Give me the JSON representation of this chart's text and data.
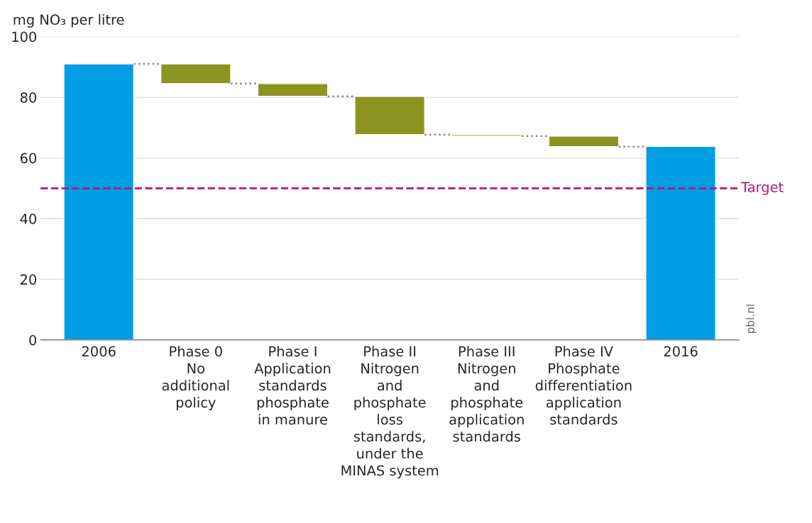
{
  "chart_data": {
    "type": "bar",
    "ylabel": "mg NO₃ per litre",
    "categories": [
      "2006",
      "Phase 0\nNo\nadditional\npolicy",
      "Phase I\nApplication\nstandards\nphosphate\nin manure",
      "Phase II\nNitrogen\nand\nphosphate\nloss\nstandards,\nunder the\nMINAS system",
      "Phase III\nNitrogen\nand\nphosphate\napplication\nstandards",
      "Phase IV\nPhosphate\ndifferentiation\napplication\nstandards",
      "2016"
    ],
    "values": [
      91,
      -6.5,
      -4.2,
      -12.6,
      -0.5,
      -3.5,
      63.8
    ],
    "base": [
      0,
      91,
      84.5,
      80.3,
      67.7,
      67.2,
      0
    ],
    "colors": [
      "#009fe3",
      "#8c9421",
      "#8c9421",
      "#8c9421",
      "#8c9421",
      "#8c9421",
      "#009fe3"
    ],
    "ylim": [
      0,
      100
    ],
    "yticks": [
      0,
      20,
      40,
      60,
      80,
      100
    ],
    "grid": "y",
    "ref_lines": [
      {
        "axis": "y",
        "value": 50,
        "label": "Target",
        "color": "#b0197e",
        "line_style": "dashed"
      }
    ],
    "annotations": [
      "pbl.nl"
    ]
  }
}
